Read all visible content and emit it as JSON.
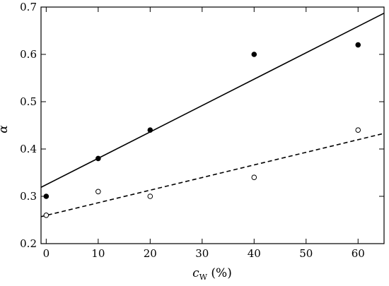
{
  "chart_data": {
    "type": "scatter",
    "xlabel": {
      "main": "c",
      "sub": "W",
      "unit": " (%)"
    },
    "ylabel": "α",
    "xlim": [
      -1,
      65
    ],
    "ylim": [
      0.2,
      0.7
    ],
    "xticks": [
      0,
      10,
      20,
      30,
      40,
      50,
      60
    ],
    "yticks": [
      0.2,
      0.3,
      0.4,
      0.5,
      0.6,
      0.7
    ],
    "ytick_labels": [
      "0.2",
      "0.3",
      "0.4",
      "0.5",
      "0.6",
      "0.7"
    ],
    "grid": false,
    "series": [
      {
        "marker": "filled-circle",
        "x": [
          0,
          10,
          20,
          40,
          60
        ],
        "y": [
          0.3,
          0.38,
          0.44,
          0.6,
          0.62
        ],
        "fit": {
          "style": "solid",
          "x": [
            -1,
            65
          ],
          "y": [
            0.319,
            0.687
          ]
        }
      },
      {
        "marker": "open-circle",
        "x": [
          0,
          10,
          20,
          40,
          60
        ],
        "y": [
          0.26,
          0.31,
          0.3,
          0.34,
          0.44
        ],
        "fit": {
          "style": "dashed",
          "x": [
            -1,
            65
          ],
          "y": [
            0.257,
            0.433
          ]
        }
      }
    ]
  }
}
